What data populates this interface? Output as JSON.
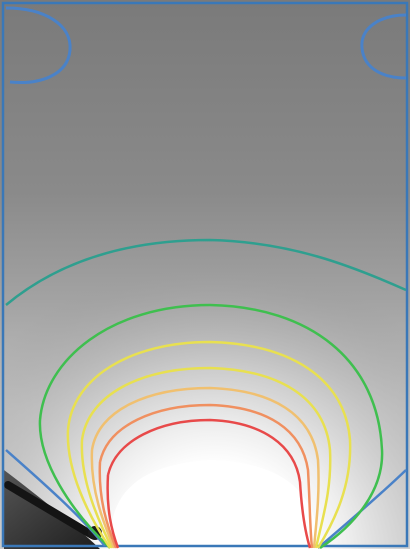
{
  "image": {
    "description_type": "grayscale-intensity-field-with-colored-contours",
    "colors": {
      "frame": "#3a78b8",
      "background_top": "#7d7d7d",
      "background_mid": "#b8b8b8",
      "glow_core": "#ffffff",
      "dark_corner": "#2a2a2a"
    },
    "contours": [
      {
        "name": "contour-blue-top-left",
        "color": "#4a82c8"
      },
      {
        "name": "contour-blue-top-right",
        "color": "#4a82c8"
      },
      {
        "name": "contour-teal",
        "color": "#2f9f8f"
      },
      {
        "name": "contour-green",
        "color": "#3fbf4f"
      },
      {
        "name": "contour-yellow-green",
        "color": "#b4d23c"
      },
      {
        "name": "contour-yellow",
        "color": "#e8e050"
      },
      {
        "name": "contour-light-orange",
        "color": "#f0c070"
      },
      {
        "name": "contour-orange",
        "color": "#f09060"
      },
      {
        "name": "contour-red",
        "color": "#e84a4a"
      }
    ]
  }
}
